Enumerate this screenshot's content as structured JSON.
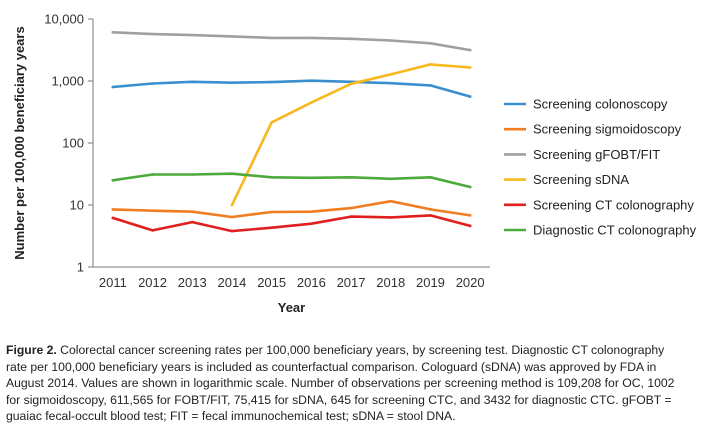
{
  "chart_data": {
    "type": "line",
    "title": "",
    "xlabel": "Year",
    "ylabel": "Number per 100,000 beneficiary years",
    "yscale": "log",
    "ylim": [
      1,
      10000
    ],
    "yticks": [
      "1",
      "10",
      "100",
      "1,000",
      "10,000"
    ],
    "xticks": [
      "2011",
      "2012",
      "2013",
      "2014",
      "2015",
      "2016",
      "2017",
      "2018",
      "2019",
      "2020"
    ],
    "grid": false,
    "legend_position": "right",
    "series": [
      {
        "name": "Screening colonoscopy",
        "color": "#3a8fd0",
        "x": [
          "2011",
          "2012",
          "2013",
          "2014",
          "2015",
          "2016",
          "2017",
          "2018",
          "2019",
          "2020"
        ],
        "values": [
          800,
          910,
          970,
          940,
          960,
          1010,
          970,
          920,
          850,
          560
        ]
      },
      {
        "name": "Screening sigmoidoscopy",
        "color": "#f07d22",
        "x": [
          "2011",
          "2012",
          "2013",
          "2014",
          "2015",
          "2016",
          "2017",
          "2018",
          "2019",
          "2020"
        ],
        "values": [
          8.5,
          8.1,
          7.8,
          6.4,
          7.7,
          7.8,
          8.9,
          11.5,
          8.5,
          6.8
        ]
      },
      {
        "name": "Screening gFOBT/FIT",
        "color": "#a0a0a0",
        "x": [
          "2011",
          "2012",
          "2013",
          "2014",
          "2015",
          "2016",
          "2017",
          "2018",
          "2019",
          "2020"
        ],
        "values": [
          6100,
          5700,
          5500,
          5250,
          4950,
          4950,
          4800,
          4500,
          4050,
          3150
        ]
      },
      {
        "name": "Screening sDNA",
        "color": "#f8b81c",
        "x": [
          "2014",
          "2015",
          "2016",
          "2017",
          "2018",
          "2019",
          "2020"
        ],
        "values": [
          10,
          215,
          450,
          900,
          1280,
          1850,
          1650
        ]
      },
      {
        "name": "Screening CT colonography",
        "color": "#e11f1f",
        "x": [
          "2011",
          "2012",
          "2013",
          "2014",
          "2015",
          "2016",
          "2017",
          "2018",
          "2019",
          "2020"
        ],
        "values": [
          6.2,
          3.9,
          5.3,
          3.8,
          4.3,
          5.0,
          6.5,
          6.3,
          6.8,
          4.6
        ]
      },
      {
        "name": "Diagnostic CT colonography",
        "color": "#4caa3c",
        "x": [
          "2011",
          "2012",
          "2013",
          "2014",
          "2015",
          "2016",
          "2017",
          "2018",
          "2019",
          "2020"
        ],
        "values": [
          25,
          31,
          31,
          32,
          28,
          27.5,
          28,
          26.5,
          28,
          19.5
        ]
      }
    ]
  },
  "caption": {
    "label": "Figure 2.",
    "lines": [
      " Colorectal cancer screening rates per 100,000 beneficiary years, by screening test. Diagnostic CT colonography",
      "rate per 100,000 beneficiary years is included as counterfactual comparison.  Cologuard (sDNA) was approved by FDA in",
      "August 2014. Values are shown in logarithmic scale. Number of observations per screening method is 109,208 for OC, 1002",
      "for sigmoidoscopy, 611,565 for FOBT/FIT, 75,415 for sDNA, 645 for screening CTC, and 3432 for diagnostic CTC. gFOBT =",
      "guaiac fecal-occult blood test; FIT = fecal immunochemical test; sDNA = stool DNA."
    ]
  }
}
